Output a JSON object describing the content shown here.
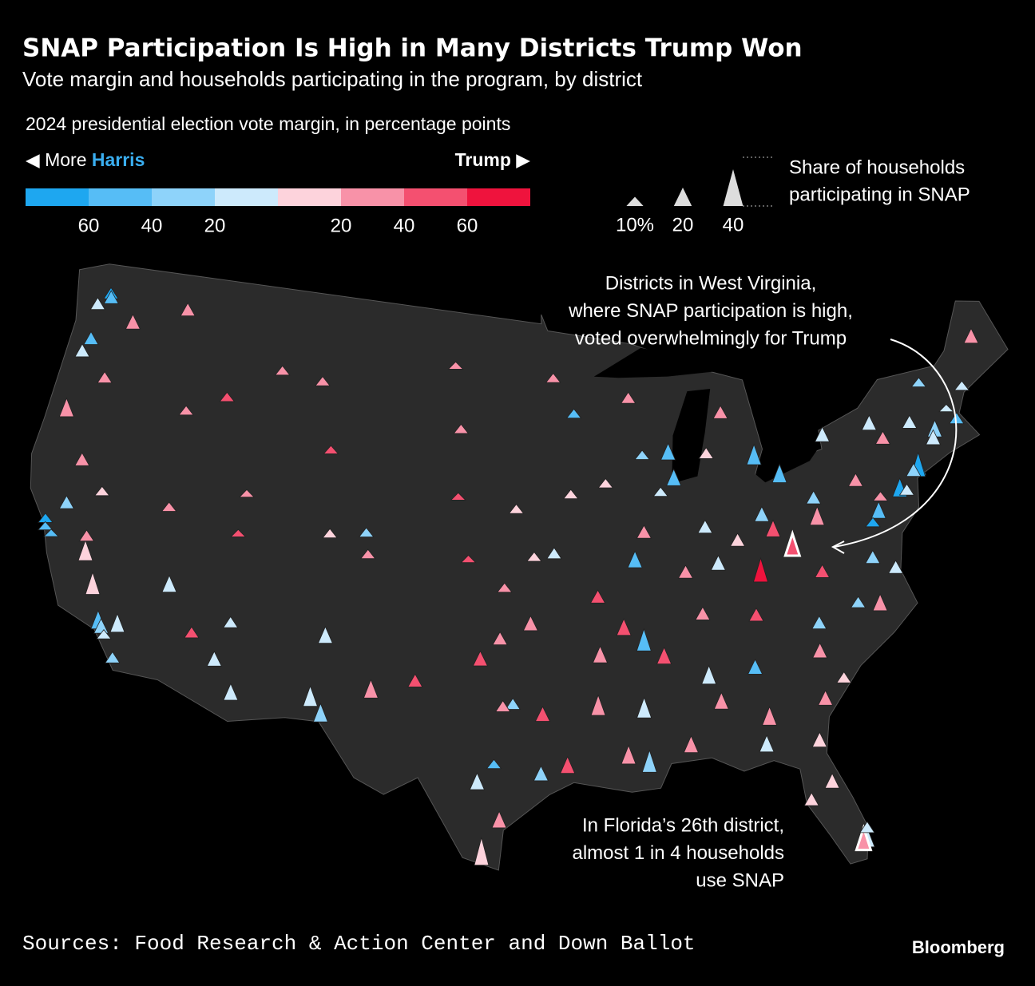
{
  "chart_data": {
    "type": "map",
    "title": "SNAP Participation Is High in Many Districts Trump Won",
    "subtitle": "Vote margin and households participating in the program, by district",
    "color_legend": {
      "title": "2024 presidential election vote margin, in percentage points",
      "left_prefix": "◀ More",
      "left_name": "Harris",
      "right_name": "Trump ▶"
    },
    "color_scale": {
      "bins": [
        -80,
        -60,
        -40,
        -20,
        0,
        20,
        40,
        60,
        80
      ],
      "colors": [
        "#1ea7f0",
        "#56bdf6",
        "#8ed3fa",
        "#cdeafc",
        "#fdd3dc",
        "#f892a8",
        "#f45070",
        "#ef133d"
      ],
      "ticks": [
        {
          "value": -60,
          "label": "60"
        },
        {
          "value": -40,
          "label": "40"
        },
        {
          "value": -20,
          "label": "20"
        },
        {
          "value": 20,
          "label": "20"
        },
        {
          "value": 40,
          "label": "40"
        },
        {
          "value": 60,
          "label": "60"
        }
      ]
    },
    "size_legend": {
      "title_lines": [
        "Share of households",
        "participating in SNAP"
      ],
      "sizes": [
        {
          "value": 10,
          "label": "10%"
        },
        20,
        40
      ]
    },
    "annotations": [
      {
        "lines": [
          "Districts in West Virginia,",
          "where SNAP participation is high,",
          "voted overwhelmingly for Trump"
        ]
      },
      {
        "lines": [
          "In Florida’s 26th district,",
          "almost 1 in 4 households",
          "use SNAP"
        ]
      }
    ],
    "districts": {
      "lon": [
        -122.3,
        -122.2,
        -117.4,
        -120.5,
        -122.9,
        -122.7,
        -123,
        -121.3,
        -122.9,
        -122.4,
        -122.3,
        -121.9,
        -121.5,
        -119.8,
        -119.0,
        -118.3,
        -118.1,
        -117.9,
        -117.2,
        -117.3,
        -121.3,
        -120.0,
        -115.1,
        -119.8,
        -116,
        -112.1,
        -111,
        -111.6,
        -113.5,
        -111.9,
        -112,
        -116.2,
        -114,
        -111,
        -108.5,
        -107.5,
        -105,
        -104.8,
        -107,
        -106.6,
        -104,
        -107,
        -100.5,
        -100,
        -96.7,
        -100,
        -97.3,
        -95.7,
        -99.3,
        -97.5,
        -95.9,
        -98.5,
        -96.8,
        -97.3,
        -95.4,
        -98.5,
        -97.7,
        -101.8,
        -106.4,
        -98.2,
        -97.4,
        -94.1,
        -95.3,
        -93.3,
        -94.5,
        -93.6,
        -91.6,
        -90.2,
        -94.6,
        -92.3,
        -92.3,
        -91,
        -90.1,
        -91.1,
        -92.5,
        -90.2,
        -89,
        -86.8,
        -86.3,
        -88,
        -86.8,
        -90,
        -84,
        -85.7,
        -83.5,
        -84.4,
        -81.1,
        -84,
        -80.2,
        -80.4,
        -81.4,
        -82.5,
        -81.7,
        -84.3,
        -80.1,
        -81,
        -80,
        -78.6,
        -80.8,
        -77.5,
        -77.4,
        -76.3,
        -80.2,
        -81.6,
        -80,
        -81.7,
        -83,
        -84.5,
        -82.5,
        -83,
        -85.7,
        -84.6,
        -86.2,
        -87.5,
        -87.7,
        -88.5,
        -89.6,
        -87.9,
        -89.4,
        -90,
        -75.2,
        -80,
        -77.5,
        -76.3,
        -73.9,
        -73.95,
        -73.8,
        -76.1,
        -78.9,
        -75.5,
        -74.2,
        -74.8,
        -76.6,
        -77,
        -71.1,
        -72.5,
        -72.7,
        -69,
        -70.3,
        -71.5,
        -72.7
      ],
      "lat": [
        47.6,
        47.4,
        47.7,
        46.6,
        47,
        45.5,
        44.9,
        44.1,
        42.3,
        37.8,
        37.5,
        37.3,
        38.6,
        36.7,
        35.4,
        34.05,
        33.9,
        33.7,
        32.8,
        34.1,
        40.5,
        37.5,
        36.2,
        39.5,
        39.5,
        33.5,
        32.2,
        35.2,
        34.5,
        40.7,
        39,
        43.6,
        44.5,
        46,
        45.8,
        43,
        39.7,
        38.8,
        39.5,
        35.1,
        33,
        32.4,
        47,
        44.3,
        41,
        41.5,
        37.7,
        39,
        38.9,
        35.5,
        36.1,
        34.6,
        32.8,
        32.7,
        29.8,
        29.4,
        30.3,
        33.6,
        31.8,
        26.2,
        27.8,
        30.1,
        32.3,
        44.98,
        46.5,
        41.6,
        42,
        38.6,
        39.1,
        37.2,
        34.7,
        35.8,
        30,
        30.4,
        32.5,
        32.3,
        34.5,
        33.5,
        32.4,
        30.7,
        36.2,
        35.1,
        35.9,
        38.2,
        37.5,
        33.7,
        32,
        31.5,
        25.8,
        25.7,
        28.5,
        27.9,
        30.3,
        30.4,
        26.4,
        34,
        32.8,
        35.8,
        35.2,
        35.5,
        37.5,
        36.9,
        37.3,
        38.4,
        39.5,
        41.5,
        40,
        39.1,
        39.3,
        42.4,
        42.9,
        44.5,
        39.8,
        38,
        41.9,
        41.5,
        39.8,
        43,
        43.1,
        45.5,
        40,
        40.4,
        40.8,
        40,
        40.7,
        40.65,
        42.7,
        43,
        42.9,
        42.3,
        40.7,
        40,
        39.3,
        39,
        42.4,
        42.1,
        41.8,
        45.5,
        43.7,
        43,
        44.3
      ],
      "margin": [
        -70,
        -50,
        20,
        25,
        -20,
        -60,
        -10,
        20,
        20,
        -75,
        -60,
        -50,
        -30,
        10,
        15,
        -60,
        -40,
        -10,
        -30,
        -20,
        35,
        25,
        -10,
        5,
        35,
        -20,
        -15,
        -5,
        40,
        20,
        40,
        30,
        40,
        30,
        25,
        45,
        -40,
        20,
        5,
        -10,
        30,
        -5,
        35,
        30,
        10,
        55,
        20,
        15,
        40,
        25,
        35,
        40,
        -40,
        25,
        -35,
        -20,
        -45,
        45,
        -30,
        10,
        20,
        50,
        50,
        -45,
        30,
        10,
        15,
        -50,
        -20,
        45,
        30,
        45,
        -40,
        25,
        35,
        -20,
        45,
        -15,
        35,
        30,
        20,
        -45,
        40,
        -10,
        60,
        -60,
        20,
        30,
        -10,
        20,
        5,
        15,
        10,
        -20,
        -20,
        20,
        15,
        -30,
        -30,
        20,
        -25,
        -10,
        40,
        40,
        35,
        -50,
        -30,
        10,
        40,
        -60,
        10,
        25,
        -20,
        30,
        -60,
        -15,
        30,
        -50,
        -40,
        20,
        -70,
        -30,
        35,
        20,
        -70,
        -80,
        -20,
        -10,
        -15,
        25,
        -30,
        -20,
        -60,
        -70,
        -55,
        -25,
        -20,
        20,
        -20,
        -5,
        -30
      ],
      "snap": [
        12,
        14,
        14,
        16,
        13,
        14,
        14,
        12,
        20,
        10,
        9,
        8,
        14,
        22,
        24,
        20,
        16,
        10,
        12,
        20,
        14,
        12,
        18,
        10,
        10,
        16,
        18,
        12,
        12,
        8,
        8,
        10,
        10,
        10,
        10,
        9,
        10,
        10,
        10,
        18,
        20,
        22,
        8,
        10,
        10,
        8,
        10,
        10,
        8,
        14,
        16,
        16,
        12,
        12,
        16,
        18,
        10,
        14,
        20,
        30,
        18,
        18,
        16,
        10,
        10,
        10,
        10,
        18,
        12,
        14,
        18,
        18,
        24,
        20,
        22,
        22,
        18,
        20,
        18,
        18,
        14,
        24,
        14,
        16,
        26,
        16,
        16,
        20,
        20,
        24,
        16,
        14,
        16,
        18,
        12,
        16,
        12,
        12,
        14,
        18,
        14,
        14,
        14,
        24,
        20,
        20,
        16,
        14,
        18,
        22,
        12,
        14,
        14,
        14,
        18,
        10,
        14,
        18,
        10,
        12,
        20,
        14,
        14,
        10,
        22,
        26,
        14,
        16,
        16,
        14,
        14,
        12,
        18,
        10,
        12,
        18,
        16,
        16,
        10,
        8,
        10
      ]
    },
    "source": "Sources: Food Research & Action Center and Down Ballot",
    "brand": "Bloomberg"
  }
}
